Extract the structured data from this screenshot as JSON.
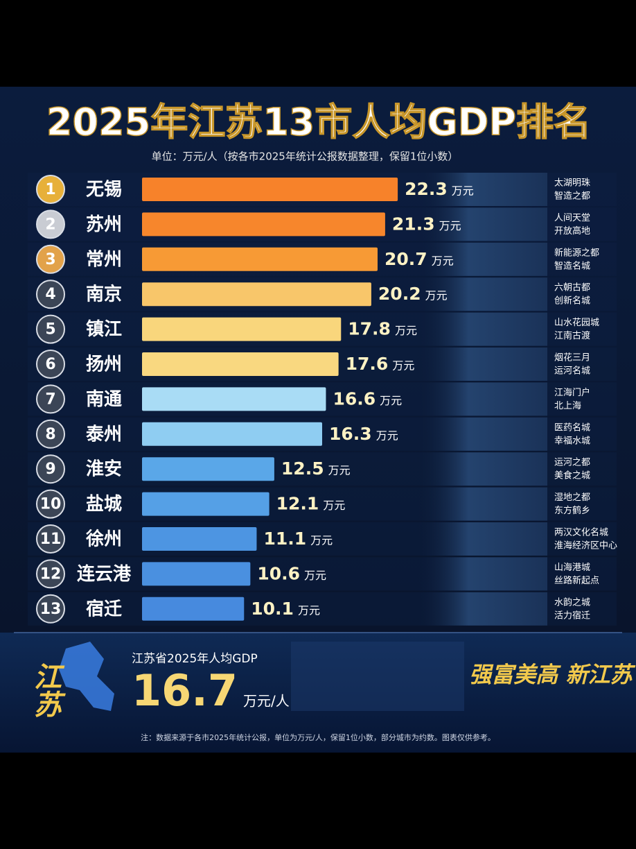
{
  "chart_data": {
    "type": "bar",
    "orientation": "horizontal",
    "title": "2025年江苏13市人均GDP排名",
    "subtitle": "单位：万元/人（按各市2025年统计公报数据整理，保留1位小数）",
    "ranks": [
      "1",
      "2",
      "3",
      "4",
      "5",
      "6",
      "7",
      "8",
      "9",
      "10",
      "11",
      "12",
      "13"
    ],
    "categories": [
      "无锡",
      "苏州",
      "常州",
      "南京",
      "镇江",
      "扬州",
      "南通",
      "泰州",
      "淮安",
      "盐城",
      "徐州",
      "连云港",
      "宿迁"
    ],
    "values": [
      22.3,
      21.3,
      20.7,
      20.2,
      17.8,
      17.6,
      16.6,
      16.3,
      12.5,
      12.1,
      11.1,
      10.6,
      10.1
    ],
    "value_unit": "万元",
    "colors": [
      "#f7822a",
      "#f7862c",
      "#f79a35",
      "#f8c66a",
      "#f9d67c",
      "#f9d880",
      "#a9dcf5",
      "#8fcdf2",
      "#5aa7e8",
      "#55a0e6",
      "#4d95e2",
      "#4a90e0",
      "#478ade"
    ],
    "taglines": [
      [
        "太湖明珠",
        "智造之都"
      ],
      [
        "人间天堂",
        "开放高地"
      ],
      [
        "新能源之都",
        "智造名城"
      ],
      [
        "六朝古都",
        "创新名城"
      ],
      [
        "山水花园城",
        "江南古渡"
      ],
      [
        "烟花三月",
        "运河名城"
      ],
      [
        "江海门户",
        "北上海"
      ],
      [
        "医药名城",
        "幸福水城"
      ],
      [
        "运河之都",
        "美食之城"
      ],
      [
        "湿地之都",
        "东方鹤乡"
      ],
      [
        "两汉文化名城",
        "淮海经济区中心"
      ],
      [
        "山海港城",
        "丝路新起点"
      ],
      [
        "水韵之城",
        "活力宿迁"
      ]
    ],
    "xlim": [
      2,
      24
    ]
  },
  "footer": {
    "map_label": "江苏",
    "summary_label": "江苏省2025年人均GDP",
    "summary_value": "16.7",
    "summary_unit": "万元/人",
    "slogan": "强富美高 新江苏",
    "note": "注：数据来源于各市2025年统计公报，单位为万元/人，保留1位小数，部分城市为约数。图表仅供参考。"
  }
}
